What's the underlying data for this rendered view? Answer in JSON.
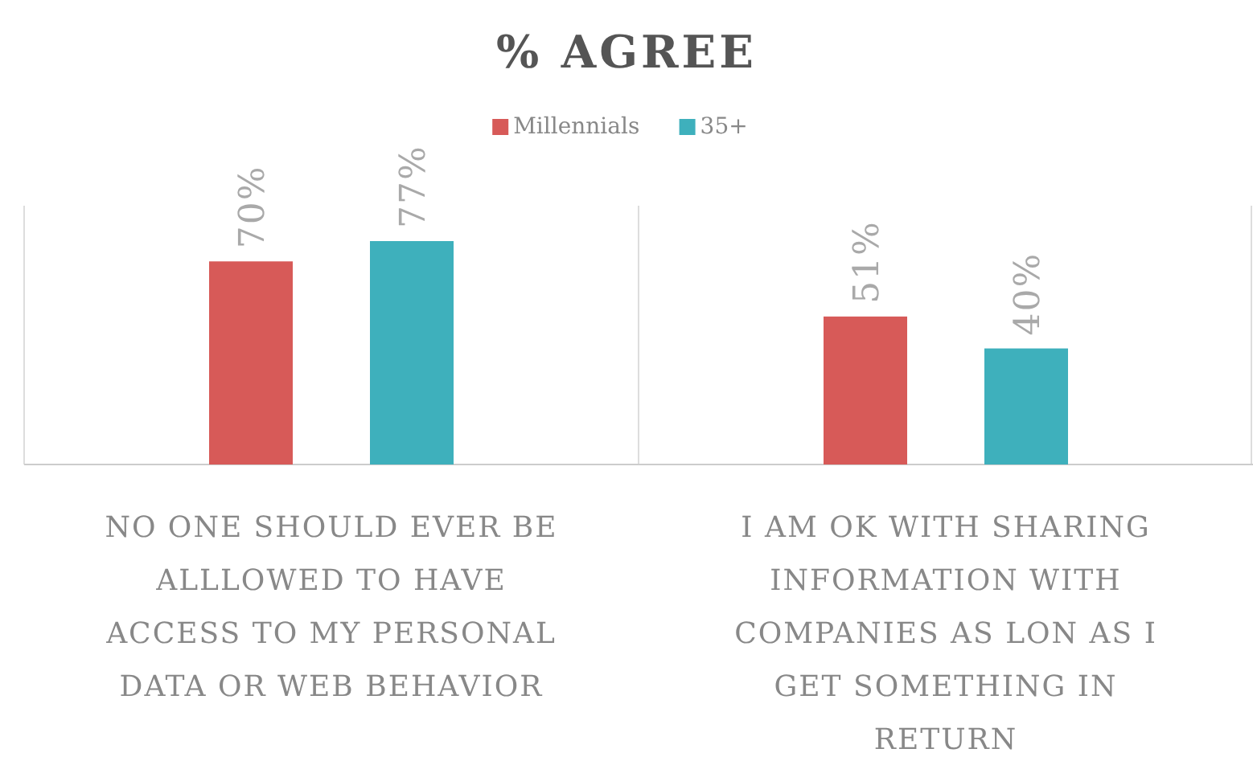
{
  "chart_data": {
    "type": "bar",
    "title": "% AGREE",
    "categories": [
      "NO ONE SHOULD EVER BE ALLLOWED TO HAVE ACCESS TO MY PERSONAL DATA OR WEB BEHAVIOR",
      "I AM OK WITH SHARING INFORMATION WITH COMPANIES AS LON AS I GET SOMETHING IN RETURN"
    ],
    "series": [
      {
        "name": "Millennials",
        "color": "#d75a58",
        "values": [
          70,
          51
        ],
        "value_labels": [
          "70%",
          "51%"
        ]
      },
      {
        "name": "35+",
        "color": "#3eb0bc",
        "values": [
          77,
          40
        ],
        "value_labels": [
          "77%",
          "40%"
        ]
      }
    ],
    "legend": "top"
  }
}
